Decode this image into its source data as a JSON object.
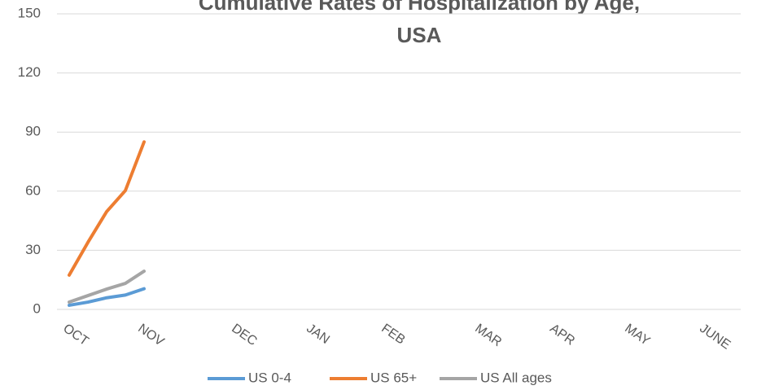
{
  "chart_data": {
    "type": "line",
    "title": "Cumulative Rates of Hospitalization by Age, USA",
    "categories": [
      "OCT",
      null,
      null,
      null,
      "NOV",
      null,
      null,
      null,
      null,
      "DEC",
      null,
      null,
      null,
      "JAN",
      null,
      null,
      null,
      "FEB",
      null,
      null,
      null,
      null,
      "MAR",
      null,
      null,
      null,
      "APR",
      null,
      null,
      null,
      "MAY",
      null,
      null,
      null,
      "JUNE",
      null
    ],
    "series": [
      {
        "name": "US 0-4",
        "color": "#5b9bd5",
        "values": [
          2.1,
          3.7,
          5.9,
          7.3,
          10.5,
          null,
          null,
          null,
          null,
          null,
          null,
          null,
          null,
          null,
          null,
          null,
          null,
          null,
          null,
          null,
          null,
          null,
          null,
          null,
          null,
          null,
          null,
          null,
          null,
          null,
          null,
          null,
          null,
          null,
          null,
          null
        ]
      },
      {
        "name": "US 65+",
        "color": "#ed7d31",
        "values": [
          17.4,
          34,
          49.6,
          60.3,
          85,
          null,
          null,
          null,
          null,
          null,
          null,
          null,
          null,
          null,
          null,
          null,
          null,
          null,
          null,
          null,
          null,
          null,
          null,
          null,
          null,
          null,
          null,
          null,
          null,
          null,
          null,
          null,
          null,
          null,
          null,
          null
        ]
      },
      {
        "name": "US All ages",
        "color": "#a5a5a5",
        "values": [
          3.7,
          7,
          10.3,
          13.2,
          19.4,
          null,
          null,
          null,
          null,
          null,
          null,
          null,
          null,
          null,
          null,
          null,
          null,
          null,
          null,
          null,
          null,
          null,
          null,
          null,
          null,
          null,
          null,
          null,
          null,
          null,
          null,
          null,
          null,
          null,
          null,
          null
        ]
      }
    ],
    "ylim": [
      0,
      150
    ],
    "yticks": [
      0,
      30,
      60,
      90,
      120,
      150
    ],
    "grid": true,
    "legend": "bottom"
  }
}
